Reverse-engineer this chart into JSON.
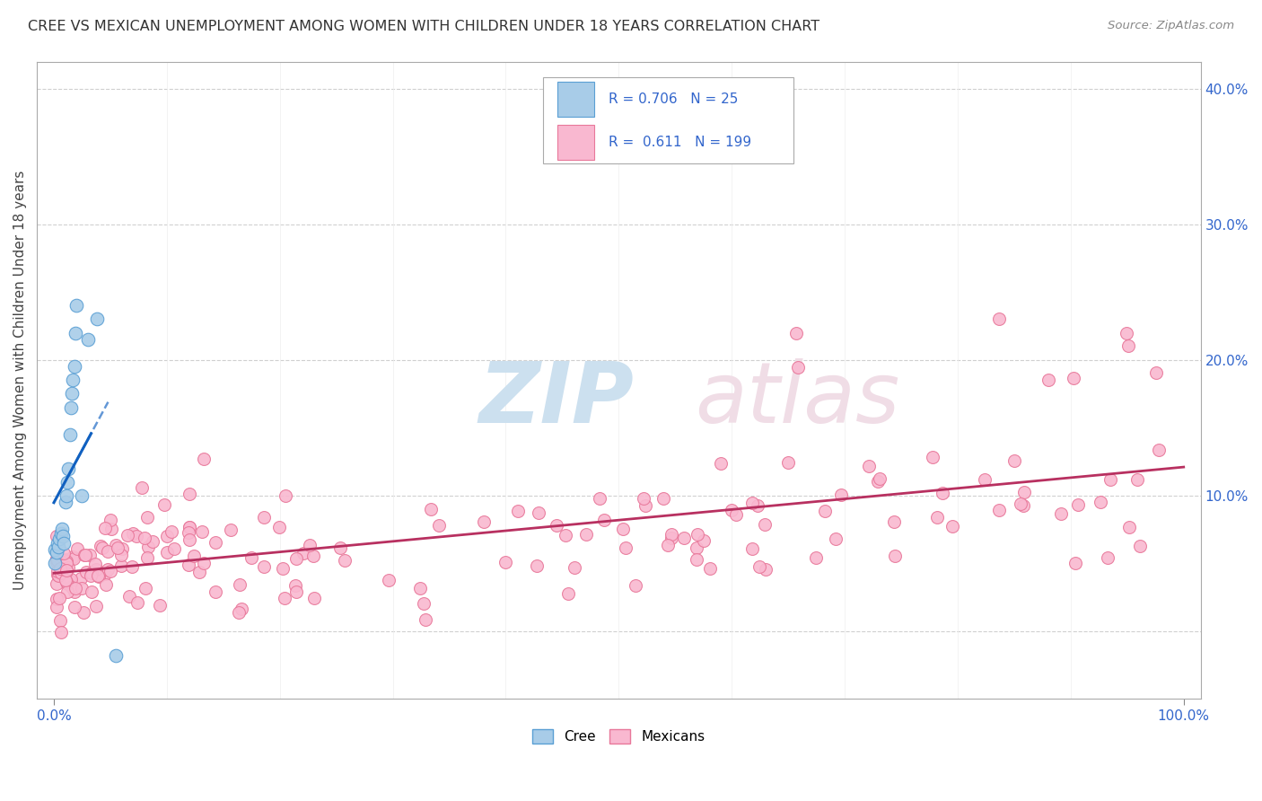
{
  "title": "CREE VS MEXICAN UNEMPLOYMENT AMONG WOMEN WITH CHILDREN UNDER 18 YEARS CORRELATION CHART",
  "source": "Source: ZipAtlas.com",
  "ylabel": "Unemployment Among Women with Children Under 18 years",
  "cree_color": "#a8cce8",
  "cree_edge_color": "#5a9fd4",
  "mexican_color": "#f9b8d0",
  "mexican_edge_color": "#e8789a",
  "cree_line_color": "#1060c0",
  "mexican_line_color": "#b83060",
  "legend_color": "#3366cc",
  "cree_R": 0.706,
  "cree_N": 25,
  "mexican_R": 0.611,
  "mexican_N": 199,
  "xlim": [
    -0.015,
    1.015
  ],
  "ylim": [
    -0.05,
    0.42
  ],
  "yticks": [
    0.0,
    0.1,
    0.2,
    0.3,
    0.4
  ],
  "ytick_labels": [
    "",
    "10.0%",
    "20.0%",
    "30.0%",
    "40.0%"
  ],
  "xtick_left": "0.0%",
  "xtick_right": "100.0%"
}
